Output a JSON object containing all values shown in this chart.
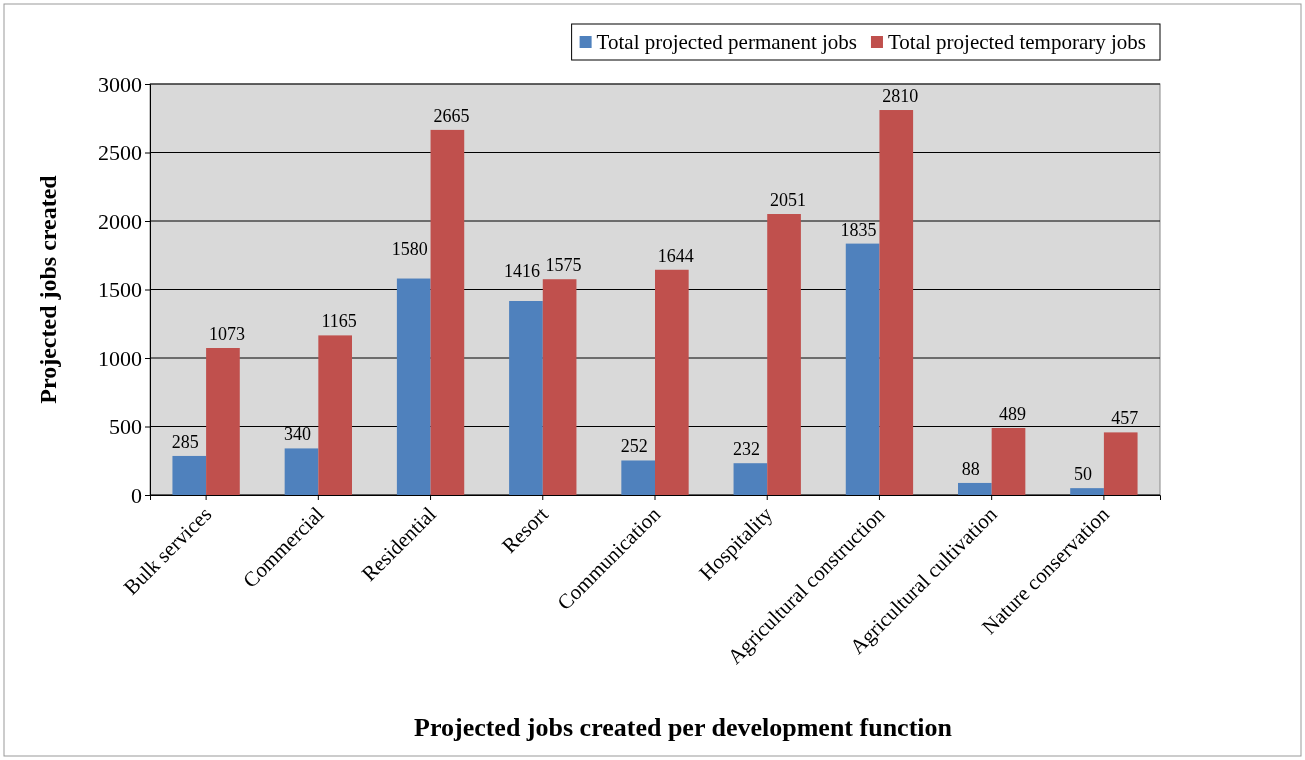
{
  "chart_data": {
    "type": "bar",
    "xlabel": "Projected jobs created per development function",
    "ylabel": "Projected jobs created",
    "categories": [
      "Bulk services",
      "Commercial",
      "Residential",
      "Resort",
      "Communication",
      "Hospitality",
      "Agricultural construction",
      "Agricultural cultivation",
      "Nature conservation"
    ],
    "series": [
      {
        "name": "Total projected permanent jobs",
        "color": "#4f81bd",
        "values": [
          285,
          340,
          1580,
          1416,
          252,
          232,
          1835,
          88,
          50
        ]
      },
      {
        "name": "Total projected temporary jobs",
        "color": "#c0504d",
        "values": [
          1073,
          1165,
          2665,
          1575,
          1644,
          2051,
          2810,
          489,
          457
        ]
      }
    ],
    "ylim": [
      0,
      3000
    ],
    "yticks": [
      0,
      500,
      1000,
      1500,
      2000,
      2500,
      3000
    ],
    "grid": "y",
    "legend": "top right",
    "data_labels": true
  }
}
